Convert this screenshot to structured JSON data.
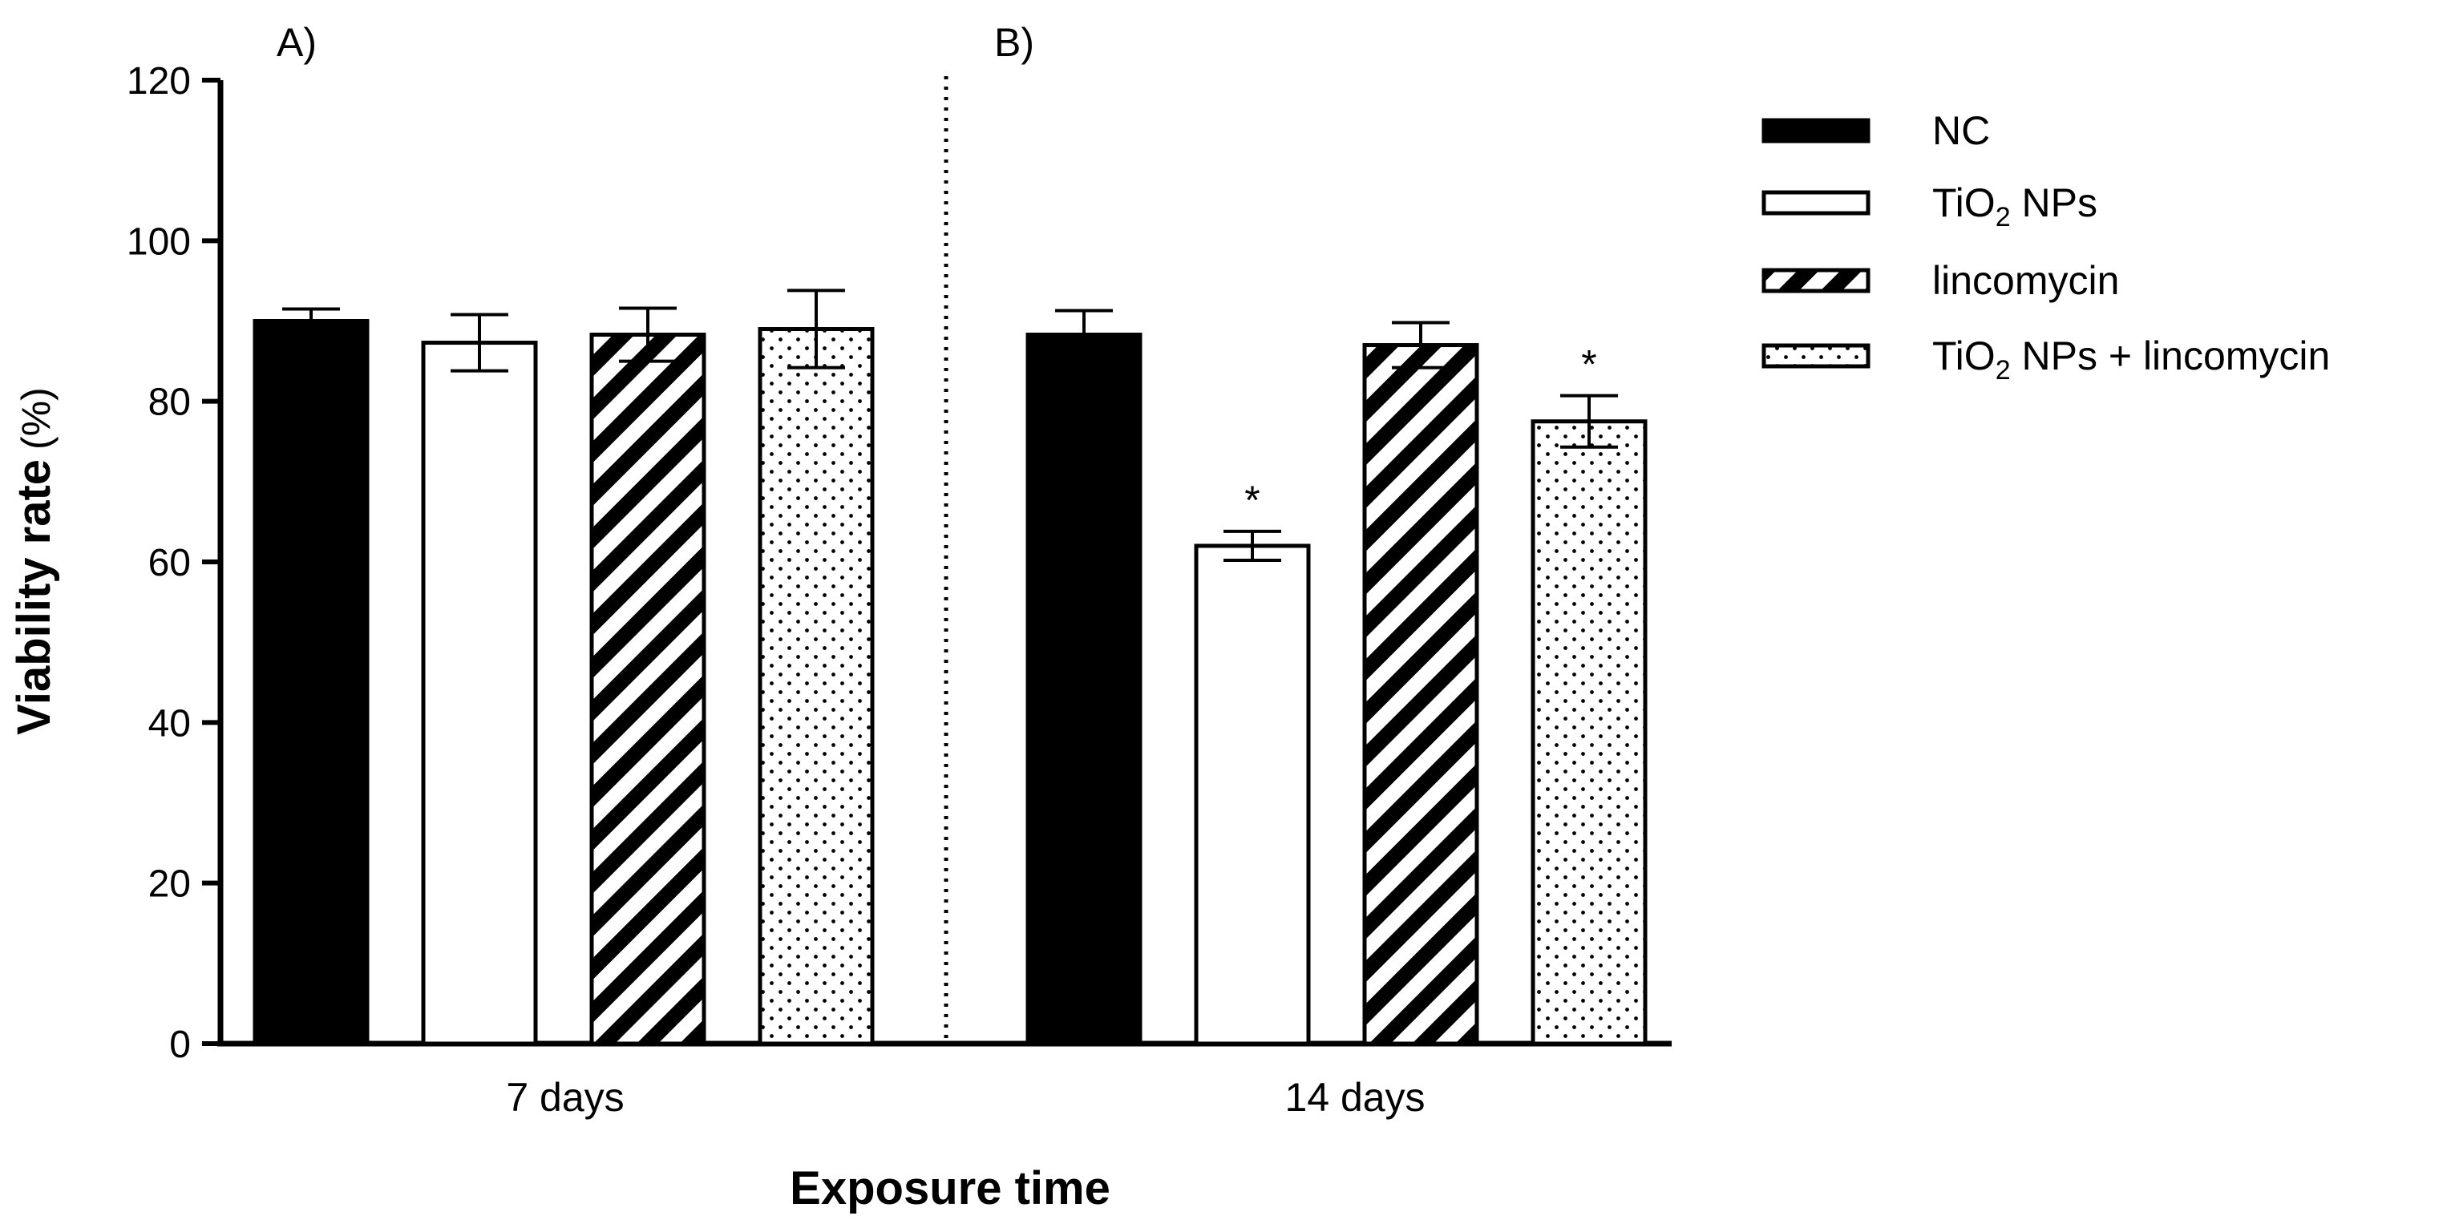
{
  "chart_data": {
    "type": "bar",
    "title": "",
    "xlabel": "Exposure time",
    "ylabel_bold": "Viability rate",
    "ylabel_unit": "(%)",
    "ylim": [
      0,
      120
    ],
    "yticks": [
      0,
      20,
      40,
      60,
      80,
      100,
      120
    ],
    "categories": [
      "7 days",
      "14 days"
    ],
    "panel_labels": [
      "A)",
      "B)"
    ],
    "series": [
      {
        "name": "NC",
        "legend_main": "NC",
        "legend_sub": "",
        "legend_tail": "",
        "pattern": "solid",
        "values": [
          90,
          88.3
        ],
        "errors": [
          1.5,
          3.0
        ],
        "significant": [
          false,
          false
        ]
      },
      {
        "name": "TiO2 NPs",
        "legend_main": "TiO",
        "legend_sub": "2",
        "legend_tail": " NPs",
        "pattern": "empty",
        "values": [
          87.3,
          62
        ],
        "errors": [
          3.5,
          1.8
        ],
        "significant": [
          false,
          true
        ]
      },
      {
        "name": "lincomycin",
        "legend_main": "lincomycin",
        "legend_sub": "",
        "legend_tail": "",
        "pattern": "hatch",
        "values": [
          88.3,
          87
        ],
        "errors": [
          3.3,
          2.8
        ],
        "significant": [
          false,
          false
        ]
      },
      {
        "name": "TiO2 NPs + lincomycin",
        "legend_main": "TiO",
        "legend_sub": "2",
        "legend_tail": " NPs + lincomycin",
        "pattern": "dots",
        "values": [
          89,
          77.5
        ],
        "errors": [
          4.8,
          3.2
        ],
        "significant": [
          false,
          true
        ]
      }
    ],
    "significance_marker": "*",
    "legend_position": "right",
    "grid": false
  }
}
